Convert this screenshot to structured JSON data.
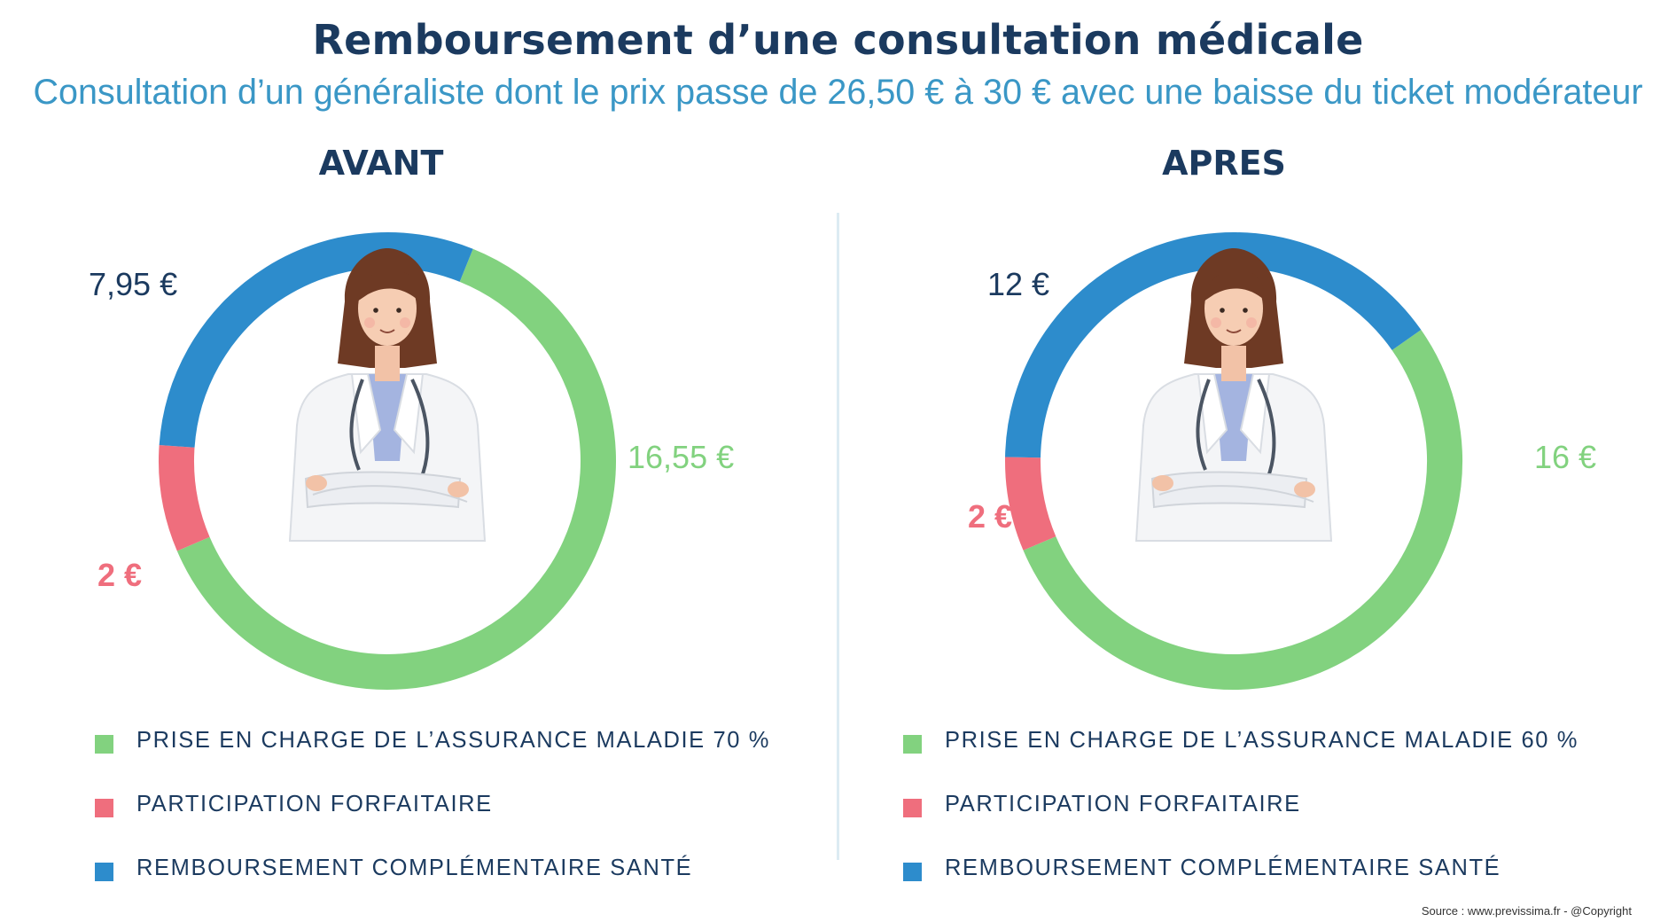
{
  "title": "Remboursement d’une consultation médicale",
  "subtitle": "Consultation d’un généraliste dont le prix passe de 26,50 € à 30 € avec une baisse du ticket modérateur",
  "source": "Source : www.previssima.fr - @Copyright",
  "colors": {
    "navy": "#1b3a5f",
    "subtitle_blue": "#3a97c6",
    "green": "#82d27f",
    "pink": "#ef6e7d",
    "blue": "#2d8ccc"
  },
  "icon": "doctor-woman-illustration",
  "chart_data": [
    {
      "type": "pie",
      "title": "AVANT",
      "total": 26.5,
      "slices": [
        {
          "label": "16,55 €",
          "value": 16.55,
          "color": "#82d27f"
        },
        {
          "label": "2 €",
          "value": 2,
          "color": "#ef6e7d"
        },
        {
          "label": "7,95 €",
          "value": 7.95,
          "color": "#2d8ccc"
        }
      ],
      "legend": [
        {
          "label": "PRISE EN CHARGE DE L’ASSURANCE MALADIE 70 %",
          "color": "#82d27f"
        },
        {
          "label": "PARTICIPATION FORFAITAIRE",
          "color": "#ef6e7d"
        },
        {
          "label": "REMBOURSEMENT COMPLÉMENTAIRE SANTÉ",
          "color": "#2d8ccc"
        }
      ]
    },
    {
      "type": "pie",
      "title": "APRES",
      "total": 30,
      "slices": [
        {
          "label": "16 €",
          "value": 16,
          "color": "#82d27f"
        },
        {
          "label": "2 €",
          "value": 2,
          "color": "#ef6e7d"
        },
        {
          "label": "12 €",
          "value": 12,
          "color": "#2d8ccc"
        }
      ],
      "legend": [
        {
          "label": "PRISE EN CHARGE DE L’ASSURANCE MALADIE 60 %",
          "color": "#82d27f"
        },
        {
          "label": "PARTICIPATION FORFAITAIRE",
          "color": "#ef6e7d"
        },
        {
          "label": "REMBOURSEMENT COMPLÉMENTAIRE SANTÉ",
          "color": "#2d8ccc"
        }
      ]
    }
  ]
}
